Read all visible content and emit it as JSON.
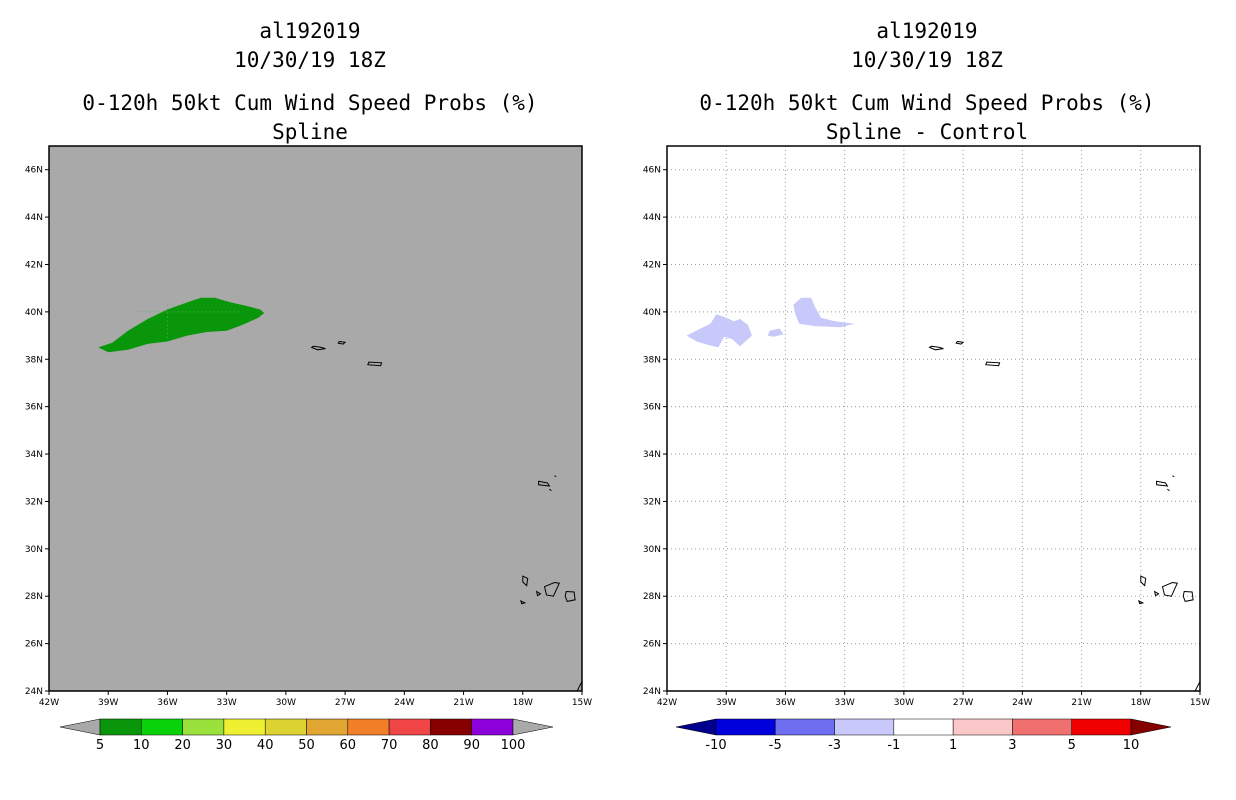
{
  "left_panel": {
    "title_line1": "al192019",
    "title_line2": "10/30/19 18Z",
    "title_line3": "0-120h 50kt Cum Wind Speed Probs (%)",
    "title_line4": "Spline"
  },
  "right_panel": {
    "title_line1": "al192019",
    "title_line2": "10/30/19 18Z",
    "title_line3": "0-120h 50kt Cum Wind Speed Probs (%)",
    "title_line4": "Spline - Control"
  },
  "chart_data": [
    {
      "type": "map",
      "title": "0-120h 50kt Cum Wind Speed Probs (%)",
      "subtitle": "Spline",
      "xlim": [
        -42,
        -15
      ],
      "ylim": [
        24,
        47
      ],
      "x_ticks": [
        {
          "v": -42,
          "label": "42W"
        },
        {
          "v": -39,
          "label": "39W"
        },
        {
          "v": -36,
          "label": "36W"
        },
        {
          "v": -33,
          "label": "33W"
        },
        {
          "v": -30,
          "label": "30W"
        },
        {
          "v": -27,
          "label": "27W"
        },
        {
          "v": -24,
          "label": "24W"
        },
        {
          "v": -21,
          "label": "21W"
        },
        {
          "v": -18,
          "label": "18W"
        },
        {
          "v": -15,
          "label": "15W"
        }
      ],
      "y_ticks": [
        {
          "v": 24,
          "label": "24N"
        },
        {
          "v": 26,
          "label": "26N"
        },
        {
          "v": 28,
          "label": "28N"
        },
        {
          "v": 30,
          "label": "30N"
        },
        {
          "v": 32,
          "label": "32N"
        },
        {
          "v": 34,
          "label": "34N"
        },
        {
          "v": 36,
          "label": "36N"
        },
        {
          "v": 38,
          "label": "38N"
        },
        {
          "v": 40,
          "label": "40N"
        },
        {
          "v": 42,
          "label": "42N"
        },
        {
          "v": 44,
          "label": "44N"
        },
        {
          "v": 46,
          "label": "46N"
        }
      ],
      "background": "#a9a9a9",
      "colorbar": {
        "labels": [
          "5",
          "10",
          "20",
          "30",
          "40",
          "50",
          "60",
          "70",
          "80",
          "90",
          "100"
        ],
        "colors": [
          "#0a960a",
          "#0ad20a",
          "#9be13c",
          "#f0f032",
          "#dcd232",
          "#e1a532",
          "#f07f28",
          "#f04646",
          "#870000",
          "#8c00dc"
        ],
        "below_color": "#a9a9a9",
        "above_color": "#a9a9a9"
      },
      "filled_regions": [
        {
          "level": "5-10",
          "color": "#0a960a",
          "points": [
            [
              -39.5,
              38.5
            ],
            [
              -38.8,
              38.7
            ],
            [
              -38.0,
              39.2
            ],
            [
              -37.0,
              39.7
            ],
            [
              -36.0,
              40.1
            ],
            [
              -35.0,
              40.4
            ],
            [
              -34.3,
              40.6
            ],
            [
              -33.6,
              40.6
            ],
            [
              -32.8,
              40.4
            ],
            [
              -32.0,
              40.25
            ],
            [
              -31.3,
              40.1
            ],
            [
              -31.1,
              39.95
            ],
            [
              -31.4,
              39.75
            ],
            [
              -32.2,
              39.45
            ],
            [
              -33.0,
              39.2
            ],
            [
              -34.0,
              39.15
            ],
            [
              -35.0,
              39.0
            ],
            [
              -36.0,
              38.75
            ],
            [
              -37.0,
              38.65
            ],
            [
              -38.0,
              38.4
            ],
            [
              -39.0,
              38.3
            ]
          ]
        }
      ],
      "coastlines": [
        [
          [
            -28.6,
            38.55
          ],
          [
            -28.2,
            38.5
          ],
          [
            -28.0,
            38.45
          ],
          [
            -28.4,
            38.4
          ],
          [
            -28.7,
            38.5
          ]
        ],
        [
          [
            -27.3,
            38.75
          ],
          [
            -27.0,
            38.72
          ],
          [
            -27.1,
            38.64
          ],
          [
            -27.35,
            38.68
          ]
        ],
        [
          [
            -25.8,
            37.88
          ],
          [
            -25.15,
            37.85
          ],
          [
            -25.2,
            37.73
          ],
          [
            -25.85,
            37.77
          ]
        ],
        [
          [
            -17.2,
            32.85
          ],
          [
            -16.75,
            32.78
          ],
          [
            -16.65,
            32.65
          ],
          [
            -17.2,
            32.7
          ]
        ],
        [
          [
            -16.4,
            33.08
          ],
          [
            -16.3,
            33.05
          ]
        ],
        [
          [
            -16.65,
            32.52
          ],
          [
            -16.55,
            32.45
          ]
        ],
        [
          [
            -18.0,
            28.85
          ],
          [
            -17.75,
            28.75
          ],
          [
            -17.8,
            28.45
          ],
          [
            -18.0,
            28.6
          ]
        ],
        [
          [
            -17.3,
            28.2
          ],
          [
            -17.1,
            28.1
          ],
          [
            -17.25,
            28.02
          ]
        ],
        [
          [
            -18.1,
            27.8
          ],
          [
            -17.9,
            27.72
          ],
          [
            -18.05,
            27.68
          ]
        ],
        [
          [
            -16.9,
            28.4
          ],
          [
            -16.4,
            28.58
          ],
          [
            -16.15,
            28.55
          ],
          [
            -16.45,
            28.0
          ],
          [
            -16.8,
            28.05
          ]
        ],
        [
          [
            -15.8,
            28.2
          ],
          [
            -15.4,
            28.18
          ],
          [
            -15.35,
            27.85
          ],
          [
            -15.75,
            27.78
          ],
          [
            -15.85,
            28.0
          ]
        ],
        [
          [
            -15.25,
            24.0
          ],
          [
            -15.0,
            24.4
          ]
        ]
      ]
    },
    {
      "type": "map",
      "title": "0-120h 50kt Cum Wind Speed Probs (%)",
      "subtitle": "Spline - Control",
      "xlim": [
        -42,
        -15
      ],
      "ylim": [
        24,
        47
      ],
      "x_ticks": [
        {
          "v": -42,
          "label": "42W"
        },
        {
          "v": -39,
          "label": "39W"
        },
        {
          "v": -36,
          "label": "36W"
        },
        {
          "v": -33,
          "label": "33W"
        },
        {
          "v": -30,
          "label": "30W"
        },
        {
          "v": -27,
          "label": "27W"
        },
        {
          "v": -24,
          "label": "24W"
        },
        {
          "v": -21,
          "label": "21W"
        },
        {
          "v": -18,
          "label": "18W"
        },
        {
          "v": -15,
          "label": "15W"
        }
      ],
      "y_ticks": [
        {
          "v": 24,
          "label": "24N"
        },
        {
          "v": 26,
          "label": "26N"
        },
        {
          "v": 28,
          "label": "28N"
        },
        {
          "v": 30,
          "label": "30N"
        },
        {
          "v": 32,
          "label": "32N"
        },
        {
          "v": 34,
          "label": "34N"
        },
        {
          "v": 36,
          "label": "36N"
        },
        {
          "v": 38,
          "label": "38N"
        },
        {
          "v": 40,
          "label": "40N"
        },
        {
          "v": 42,
          "label": "42N"
        },
        {
          "v": 44,
          "label": "44N"
        },
        {
          "v": 46,
          "label": "46N"
        }
      ],
      "background": "#ffffff",
      "grid": true,
      "colorbar": {
        "labels": [
          "-10",
          "-5",
          "-3",
          "-1",
          "1",
          "3",
          "5",
          "10"
        ],
        "colors": [
          "#0000dc",
          "#6e6ef0",
          "#c8c8fa",
          "#ffffff",
          "#fac8c8",
          "#f07070",
          "#f00000"
        ],
        "below_color": "#00008c",
        "above_color": "#870000"
      },
      "filled_regions": [
        {
          "level": "-3 to -1",
          "color": "#c8c8fa",
          "points": [
            [
              -41.0,
              39.0
            ],
            [
              -40.3,
              39.3
            ],
            [
              -39.8,
              39.5
            ],
            [
              -39.5,
              39.9
            ],
            [
              -39.0,
              39.75
            ],
            [
              -38.6,
              39.6
            ],
            [
              -38.3,
              39.7
            ],
            [
              -37.9,
              39.45
            ],
            [
              -37.7,
              39.0
            ],
            [
              -38.3,
              38.55
            ],
            [
              -38.7,
              38.85
            ],
            [
              -39.1,
              38.95
            ],
            [
              -39.4,
              38.5
            ],
            [
              -39.9,
              38.6
            ],
            [
              -40.5,
              38.75
            ]
          ]
        },
        {
          "level": "-3 to -1",
          "color": "#c8c8fa",
          "points": [
            [
              -36.8,
              39.2
            ],
            [
              -36.3,
              39.3
            ],
            [
              -36.1,
              39.05
            ],
            [
              -36.6,
              38.95
            ],
            [
              -36.9,
              39.0
            ]
          ]
        },
        {
          "level": "-3 to -1",
          "color": "#c8c8fa",
          "points": [
            [
              -35.6,
              40.3
            ],
            [
              -35.2,
              40.6
            ],
            [
              -34.7,
              40.6
            ],
            [
              -34.5,
              40.2
            ],
            [
              -34.2,
              39.75
            ],
            [
              -33.5,
              39.6
            ],
            [
              -32.5,
              39.5
            ],
            [
              -33.2,
              39.35
            ],
            [
              -34.5,
              39.4
            ],
            [
              -35.3,
              39.5
            ],
            [
              -35.5,
              39.9
            ]
          ]
        }
      ],
      "coastlines": [
        [
          [
            -28.6,
            38.55
          ],
          [
            -28.2,
            38.5
          ],
          [
            -28.0,
            38.45
          ],
          [
            -28.4,
            38.4
          ],
          [
            -28.7,
            38.5
          ]
        ],
        [
          [
            -27.3,
            38.75
          ],
          [
            -27.0,
            38.72
          ],
          [
            -27.1,
            38.64
          ],
          [
            -27.35,
            38.68
          ]
        ],
        [
          [
            -25.8,
            37.88
          ],
          [
            -25.15,
            37.85
          ],
          [
            -25.2,
            37.73
          ],
          [
            -25.85,
            37.77
          ]
        ],
        [
          [
            -17.2,
            32.85
          ],
          [
            -16.75,
            32.78
          ],
          [
            -16.65,
            32.65
          ],
          [
            -17.2,
            32.7
          ]
        ],
        [
          [
            -16.4,
            33.08
          ],
          [
            -16.3,
            33.05
          ]
        ],
        [
          [
            -16.65,
            32.52
          ],
          [
            -16.55,
            32.45
          ]
        ],
        [
          [
            -18.0,
            28.85
          ],
          [
            -17.75,
            28.75
          ],
          [
            -17.8,
            28.45
          ],
          [
            -18.0,
            28.6
          ]
        ],
        [
          [
            -17.3,
            28.2
          ],
          [
            -17.1,
            28.1
          ],
          [
            -17.25,
            28.02
          ]
        ],
        [
          [
            -18.1,
            27.8
          ],
          [
            -17.9,
            27.72
          ],
          [
            -18.05,
            27.68
          ]
        ],
        [
          [
            -16.9,
            28.4
          ],
          [
            -16.4,
            28.58
          ],
          [
            -16.15,
            28.55
          ],
          [
            -16.45,
            28.0
          ],
          [
            -16.8,
            28.05
          ]
        ],
        [
          [
            -15.8,
            28.2
          ],
          [
            -15.4,
            28.18
          ],
          [
            -15.35,
            27.85
          ],
          [
            -15.75,
            27.78
          ],
          [
            -15.85,
            28.0
          ]
        ],
        [
          [
            -15.25,
            24.0
          ],
          [
            -15.0,
            24.4
          ]
        ]
      ]
    }
  ]
}
